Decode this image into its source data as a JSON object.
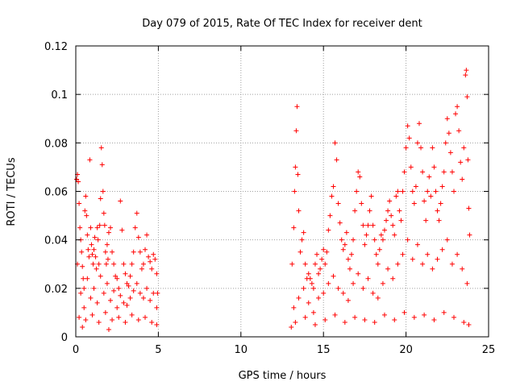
{
  "chart_data": {
    "type": "scatter",
    "title": "Day 079 of 2015, Rate Of TEC Index for receiver dent",
    "xlabel": "GPS time / hours",
    "ylabel": "ROTI / TECUs",
    "xlim": [
      0,
      25
    ],
    "ylim": [
      0,
      0.12
    ],
    "x_ticks": [
      "0",
      "5",
      "10",
      "15",
      "20",
      "25"
    ],
    "y_ticks": [
      "0",
      "0.02",
      "0.04",
      "0.06",
      "0.08",
      "0.1",
      "0.12"
    ],
    "grid": true,
    "marker": "+",
    "color": "#ff0000",
    "series": [
      {
        "points": [
          [
            0.05,
            0.065
          ],
          [
            0.1,
            0.067
          ],
          [
            0.15,
            0.064
          ],
          [
            0.2,
            0.055
          ],
          [
            0.25,
            0.045
          ],
          [
            0.3,
            0.04
          ],
          [
            0.35,
            0.035
          ],
          [
            0.4,
            0.029
          ],
          [
            0.45,
            0.024
          ],
          [
            0.5,
            0.02
          ],
          [
            0.55,
            0.052
          ],
          [
            0.6,
            0.058
          ],
          [
            0.65,
            0.05
          ],
          [
            0.7,
            0.042
          ],
          [
            0.75,
            0.036
          ],
          [
            0.8,
            0.033
          ],
          [
            0.85,
            0.073
          ],
          [
            0.9,
            0.045
          ],
          [
            0.95,
            0.038
          ],
          [
            1.0,
            0.034
          ],
          [
            1.05,
            0.03
          ],
          [
            1.1,
            0.036
          ],
          [
            1.15,
            0.041
          ],
          [
            1.2,
            0.033
          ],
          [
            1.25,
            0.028
          ],
          [
            1.3,
            0.045
          ],
          [
            1.35,
            0.04
          ],
          [
            1.4,
            0.03
          ],
          [
            1.45,
            0.046
          ],
          [
            1.5,
            0.057
          ],
          [
            1.55,
            0.078
          ],
          [
            1.6,
            0.071
          ],
          [
            1.65,
            0.06
          ],
          [
            1.7,
            0.051
          ],
          [
            1.75,
            0.046
          ],
          [
            1.8,
            0.035
          ],
          [
            1.85,
            0.03
          ],
          [
            1.9,
            0.038
          ],
          [
            1.95,
            0.032
          ],
          [
            2.0,
            0.043
          ],
          [
            2.1,
            0.045
          ],
          [
            2.2,
            0.035
          ],
          [
            2.3,
            0.03
          ],
          [
            2.4,
            0.025
          ],
          [
            2.5,
            0.024
          ],
          [
            2.6,
            0.02
          ],
          [
            2.7,
            0.056
          ],
          [
            2.8,
            0.044
          ],
          [
            2.9,
            0.03
          ],
          [
            3.0,
            0.026
          ],
          [
            3.1,
            0.022
          ],
          [
            3.2,
            0.021
          ],
          [
            3.3,
            0.025
          ],
          [
            3.4,
            0.03
          ],
          [
            3.5,
            0.035
          ],
          [
            3.6,
            0.045
          ],
          [
            3.7,
            0.051
          ],
          [
            3.8,
            0.041
          ],
          [
            3.9,
            0.035
          ],
          [
            4.0,
            0.028
          ],
          [
            4.1,
            0.03
          ],
          [
            4.2,
            0.036
          ],
          [
            4.3,
            0.042
          ],
          [
            4.4,
            0.033
          ],
          [
            4.5,
            0.031
          ],
          [
            4.6,
            0.028
          ],
          [
            4.7,
            0.034
          ],
          [
            4.8,
            0.032
          ],
          [
            4.9,
            0.026
          ],
          [
            4.95,
            0.018
          ],
          [
            0.1,
            0.03
          ],
          [
            0.3,
            0.018
          ],
          [
            0.5,
            0.012
          ],
          [
            0.7,
            0.024
          ],
          [
            0.9,
            0.016
          ],
          [
            1.1,
            0.02
          ],
          [
            1.3,
            0.014
          ],
          [
            1.5,
            0.025
          ],
          [
            1.7,
            0.018
          ],
          [
            1.9,
            0.022
          ],
          [
            2.1,
            0.015
          ],
          [
            2.3,
            0.019
          ],
          [
            2.5,
            0.012
          ],
          [
            2.7,
            0.017
          ],
          [
            2.9,
            0.014
          ],
          [
            3.1,
            0.013
          ],
          [
            3.3,
            0.016
          ],
          [
            3.5,
            0.019
          ],
          [
            3.7,
            0.022
          ],
          [
            3.9,
            0.018
          ],
          [
            4.1,
            0.016
          ],
          [
            4.3,
            0.02
          ],
          [
            4.5,
            0.015
          ],
          [
            4.7,
            0.018
          ],
          [
            4.9,
            0.012
          ],
          [
            0.2,
            0.008
          ],
          [
            0.6,
            0.007
          ],
          [
            1.0,
            0.009
          ],
          [
            1.4,
            0.006
          ],
          [
            1.8,
            0.01
          ],
          [
            2.2,
            0.007
          ],
          [
            2.6,
            0.008
          ],
          [
            3.0,
            0.006
          ],
          [
            3.4,
            0.009
          ],
          [
            3.8,
            0.007
          ],
          [
            4.2,
            0.008
          ],
          [
            4.6,
            0.006
          ],
          [
            4.9,
            0.005
          ],
          [
            0.4,
            0.004
          ],
          [
            2.0,
            0.003
          ],
          [
            13.1,
            0.03
          ],
          [
            13.2,
            0.045
          ],
          [
            13.25,
            0.06
          ],
          [
            13.3,
            0.07
          ],
          [
            13.35,
            0.085
          ],
          [
            13.4,
            0.095
          ],
          [
            13.45,
            0.067
          ],
          [
            13.5,
            0.052
          ],
          [
            13.6,
            0.035
          ],
          [
            13.7,
            0.04
          ],
          [
            13.8,
            0.043
          ],
          [
            13.9,
            0.03
          ],
          [
            14.0,
            0.024
          ],
          [
            14.1,
            0.026
          ],
          [
            14.2,
            0.024
          ],
          [
            14.3,
            0.022
          ],
          [
            14.4,
            0.02
          ],
          [
            14.5,
            0.03
          ],
          [
            14.6,
            0.034
          ],
          [
            14.7,
            0.026
          ],
          [
            14.8,
            0.028
          ],
          [
            14.9,
            0.032
          ],
          [
            15.0,
            0.036
          ],
          [
            15.1,
            0.03
          ],
          [
            15.2,
            0.035
          ],
          [
            15.3,
            0.044
          ],
          [
            15.4,
            0.05
          ],
          [
            15.5,
            0.058
          ],
          [
            15.6,
            0.062
          ],
          [
            15.7,
            0.08
          ],
          [
            15.8,
            0.073
          ],
          [
            15.9,
            0.055
          ],
          [
            16.0,
            0.047
          ],
          [
            16.1,
            0.04
          ],
          [
            16.2,
            0.036
          ],
          [
            16.3,
            0.038
          ],
          [
            16.4,
            0.043
          ],
          [
            16.5,
            0.032
          ],
          [
            16.6,
            0.028
          ],
          [
            16.7,
            0.034
          ],
          [
            16.8,
            0.04
          ],
          [
            16.9,
            0.052
          ],
          [
            17.0,
            0.06
          ],
          [
            17.1,
            0.068
          ],
          [
            17.2,
            0.066
          ],
          [
            17.3,
            0.055
          ],
          [
            17.4,
            0.046
          ],
          [
            17.5,
            0.038
          ],
          [
            17.6,
            0.042
          ],
          [
            17.7,
            0.046
          ],
          [
            17.8,
            0.052
          ],
          [
            17.9,
            0.058
          ],
          [
            18.0,
            0.046
          ],
          [
            18.1,
            0.04
          ],
          [
            18.2,
            0.034
          ],
          [
            18.3,
            0.03
          ],
          [
            18.4,
            0.036
          ],
          [
            18.5,
            0.042
          ],
          [
            18.6,
            0.04
          ],
          [
            18.7,
            0.044
          ],
          [
            18.8,
            0.048
          ],
          [
            18.9,
            0.052
          ],
          [
            19.0,
            0.056
          ],
          [
            19.1,
            0.05
          ],
          [
            19.2,
            0.046
          ],
          [
            19.3,
            0.042
          ],
          [
            19.4,
            0.058
          ],
          [
            19.5,
            0.06
          ],
          [
            19.6,
            0.052
          ],
          [
            19.7,
            0.048
          ],
          [
            19.8,
            0.06
          ],
          [
            19.9,
            0.068
          ],
          [
            20.0,
            0.078
          ],
          [
            20.1,
            0.087
          ],
          [
            20.2,
            0.082
          ],
          [
            20.3,
            0.07
          ],
          [
            20.4,
            0.06
          ],
          [
            20.5,
            0.055
          ],
          [
            20.6,
            0.062
          ],
          [
            20.7,
            0.08
          ],
          [
            20.8,
            0.088
          ],
          [
            20.9,
            0.078
          ],
          [
            21.0,
            0.068
          ],
          [
            21.1,
            0.056
          ],
          [
            21.2,
            0.048
          ],
          [
            21.3,
            0.06
          ],
          [
            21.4,
            0.066
          ],
          [
            21.5,
            0.058
          ],
          [
            21.6,
            0.078
          ],
          [
            21.7,
            0.07
          ],
          [
            21.8,
            0.06
          ],
          [
            21.9,
            0.052
          ],
          [
            22.0,
            0.048
          ],
          [
            22.1,
            0.055
          ],
          [
            22.2,
            0.062
          ],
          [
            22.3,
            0.068
          ],
          [
            22.4,
            0.08
          ],
          [
            22.5,
            0.09
          ],
          [
            22.6,
            0.084
          ],
          [
            22.7,
            0.076
          ],
          [
            22.8,
            0.068
          ],
          [
            22.9,
            0.06
          ],
          [
            23.0,
            0.092
          ],
          [
            23.1,
            0.095
          ],
          [
            23.2,
            0.085
          ],
          [
            23.3,
            0.072
          ],
          [
            23.4,
            0.065
          ],
          [
            23.5,
            0.078
          ],
          [
            23.6,
            0.108
          ],
          [
            23.65,
            0.11
          ],
          [
            23.7,
            0.099
          ],
          [
            23.75,
            0.073
          ],
          [
            23.8,
            0.053
          ],
          [
            23.85,
            0.042
          ],
          [
            13.2,
            0.012
          ],
          [
            13.5,
            0.016
          ],
          [
            13.8,
            0.02
          ],
          [
            14.1,
            0.014
          ],
          [
            14.4,
            0.01
          ],
          [
            14.7,
            0.016
          ],
          [
            15.0,
            0.018
          ],
          [
            15.3,
            0.022
          ],
          [
            15.6,
            0.025
          ],
          [
            15.9,
            0.02
          ],
          [
            16.2,
            0.018
          ],
          [
            16.5,
            0.015
          ],
          [
            16.8,
            0.022
          ],
          [
            17.1,
            0.026
          ],
          [
            17.4,
            0.02
          ],
          [
            17.7,
            0.024
          ],
          [
            18.0,
            0.018
          ],
          [
            18.3,
            0.016
          ],
          [
            18.6,
            0.022
          ],
          [
            18.9,
            0.028
          ],
          [
            19.2,
            0.024
          ],
          [
            19.5,
            0.03
          ],
          [
            19.8,
            0.034
          ],
          [
            20.1,
            0.04
          ],
          [
            20.4,
            0.032
          ],
          [
            20.7,
            0.038
          ],
          [
            21.0,
            0.03
          ],
          [
            21.3,
            0.034
          ],
          [
            21.6,
            0.028
          ],
          [
            21.9,
            0.032
          ],
          [
            22.2,
            0.036
          ],
          [
            22.5,
            0.04
          ],
          [
            22.8,
            0.03
          ],
          [
            23.1,
            0.034
          ],
          [
            23.4,
            0.028
          ],
          [
            23.7,
            0.022
          ],
          [
            13.3,
            0.006
          ],
          [
            13.9,
            0.008
          ],
          [
            14.5,
            0.005
          ],
          [
            15.1,
            0.007
          ],
          [
            15.7,
            0.009
          ],
          [
            16.3,
            0.006
          ],
          [
            16.9,
            0.008
          ],
          [
            17.5,
            0.007
          ],
          [
            18.1,
            0.006
          ],
          [
            18.7,
            0.009
          ],
          [
            19.3,
            0.007
          ],
          [
            19.9,
            0.01
          ],
          [
            20.5,
            0.008
          ],
          [
            21.1,
            0.009
          ],
          [
            21.7,
            0.007
          ],
          [
            22.3,
            0.01
          ],
          [
            22.9,
            0.008
          ],
          [
            23.5,
            0.006
          ],
          [
            23.8,
            0.005
          ],
          [
            13.05,
            0.004
          ]
        ]
      }
    ]
  }
}
